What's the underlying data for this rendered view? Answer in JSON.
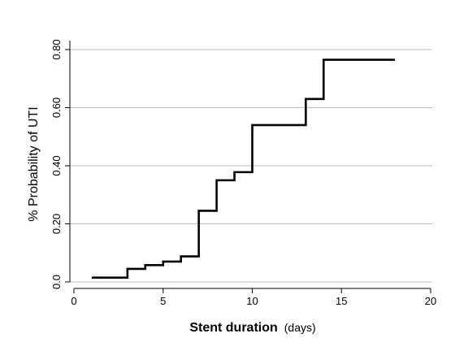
{
  "chart_data": {
    "type": "line",
    "step": true,
    "title": "",
    "xlabel": "Stent duration",
    "xlabel_unit": "(days)",
    "ylabel": "% Probability of UTI",
    "xlim": [
      0,
      20
    ],
    "ylim": [
      0,
      0.8
    ],
    "x_ticks": [
      0,
      5,
      10,
      15,
      20
    ],
    "x_tick_labels": [
      "0",
      "5",
      "10",
      "15",
      "20"
    ],
    "y_ticks": [
      0,
      0.2,
      0.4,
      0.6,
      0.8
    ],
    "y_tick_labels": [
      "0.0",
      "0.20",
      "0.40",
      "0.60",
      "0.80"
    ],
    "grid": "horizontal",
    "series": [
      {
        "color": "#000000",
        "x": [
          1,
          3,
          4,
          5,
          6,
          7,
          8,
          9,
          10,
          13,
          14,
          18
        ],
        "y": [
          0.015,
          0.045,
          0.058,
          0.07,
          0.088,
          0.245,
          0.35,
          0.378,
          0.54,
          0.63,
          0.765,
          0.765
        ]
      }
    ]
  }
}
